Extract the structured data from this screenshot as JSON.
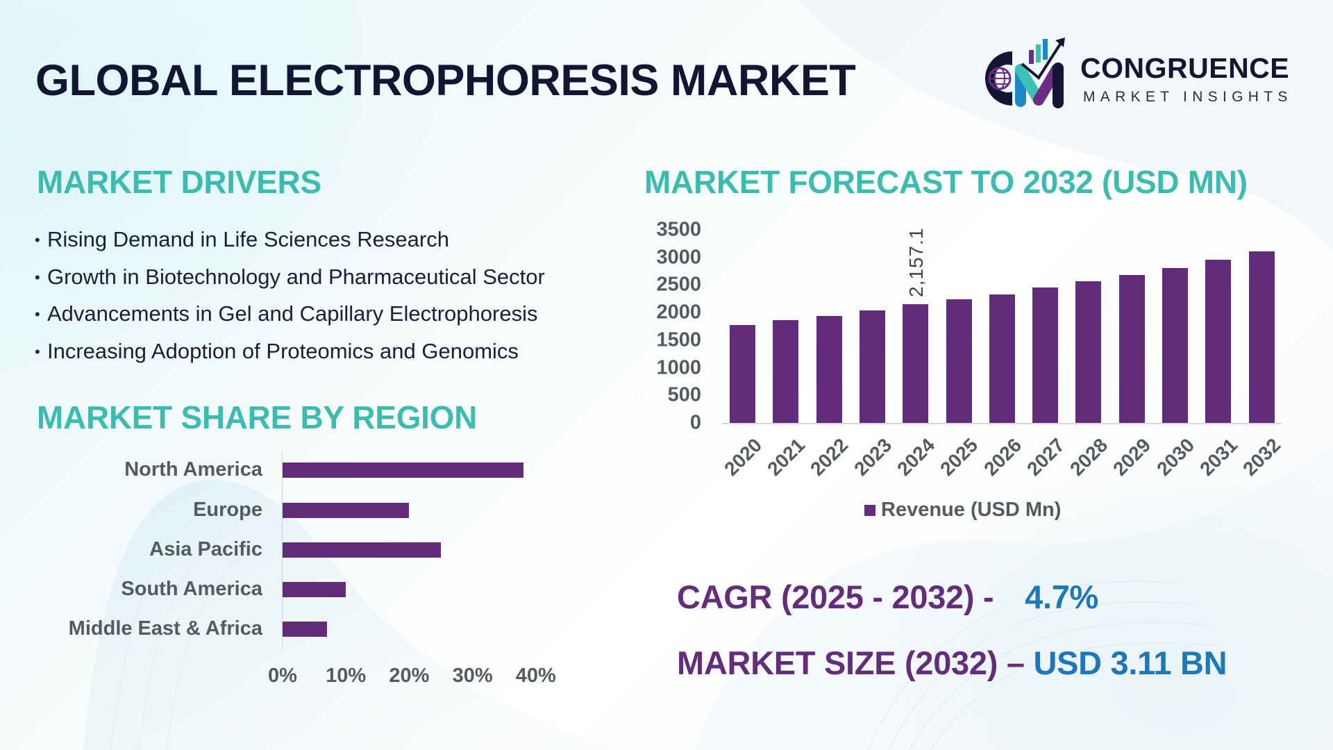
{
  "header": {
    "title": "GLOBAL ELECTROPHORESIS MARKET",
    "logo": {
      "icon": "cm-chart-globe-logo-icon",
      "name": "CONGRUENCE",
      "subtitle": "MARKET INSIGHTS"
    }
  },
  "drivers": {
    "title": "MARKET DRIVERS",
    "bullet": "•",
    "items": [
      "Rising Demand in Life Sciences Research",
      "Growth in Biotechnology and Pharmaceutical Sector",
      "Advancements in Gel and Capillary Electrophoresis",
      "Increasing Adoption of Proteomics and Genomics"
    ]
  },
  "region": {
    "title": "MARKET SHARE BY REGION"
  },
  "forecast": {
    "title": "MARKET FORECAST TO 2032 (USD MN)"
  },
  "stats": {
    "cagr_label": "CAGR (2025 - 2032) -",
    "cagr_value": "4.7%",
    "size_label": "MARKET SIZE (2032) –",
    "size_value": "USD 3.11 BN"
  },
  "colors": {
    "bar": "#622c7a",
    "section_title": "#3cbcb0",
    "title": "#121633",
    "stat_label": "#632d7c",
    "stat_value": "#1d77b8"
  },
  "chart_data": [
    {
      "type": "bar",
      "orientation": "vertical",
      "title": "MARKET FORECAST TO 2032 (USD MN)",
      "categories": [
        "2020",
        "2021",
        "2022",
        "2023",
        "2024",
        "2025",
        "2026",
        "2027",
        "2028",
        "2029",
        "2030",
        "2031",
        "2032"
      ],
      "series": [
        {
          "name": "Revenue (USD Mn)",
          "values": [
            1772,
            1865,
            1942,
            2034,
            2157.1,
            2235,
            2327,
            2450,
            2573,
            2681,
            2805,
            2958,
            3110
          ]
        }
      ],
      "data_labels": [
        {
          "category": "2024",
          "text": "2,157.1"
        }
      ],
      "y_ticks": [
        "3500",
        "3000",
        "2500",
        "2000",
        "1500",
        "1000",
        "500",
        "0"
      ],
      "ylim": [
        0,
        3500
      ],
      "xlabel": "",
      "ylabel": "",
      "legend": {
        "position": "bottom",
        "entries": [
          "Revenue (USD Mn)"
        ]
      },
      "grid": false
    },
    {
      "type": "bar",
      "orientation": "horizontal",
      "title": "MARKET SHARE BY REGION",
      "categories": [
        "North America",
        "Europe",
        "Asia Pacific",
        "South America",
        "Middle East & Africa"
      ],
      "values": [
        38,
        20,
        25,
        10,
        7
      ],
      "unit": "%",
      "x_ticks": [
        "0%",
        "10%",
        "20%",
        "30%",
        "40%"
      ],
      "xlim": [
        0,
        40
      ],
      "grid": false,
      "legend": null
    }
  ]
}
